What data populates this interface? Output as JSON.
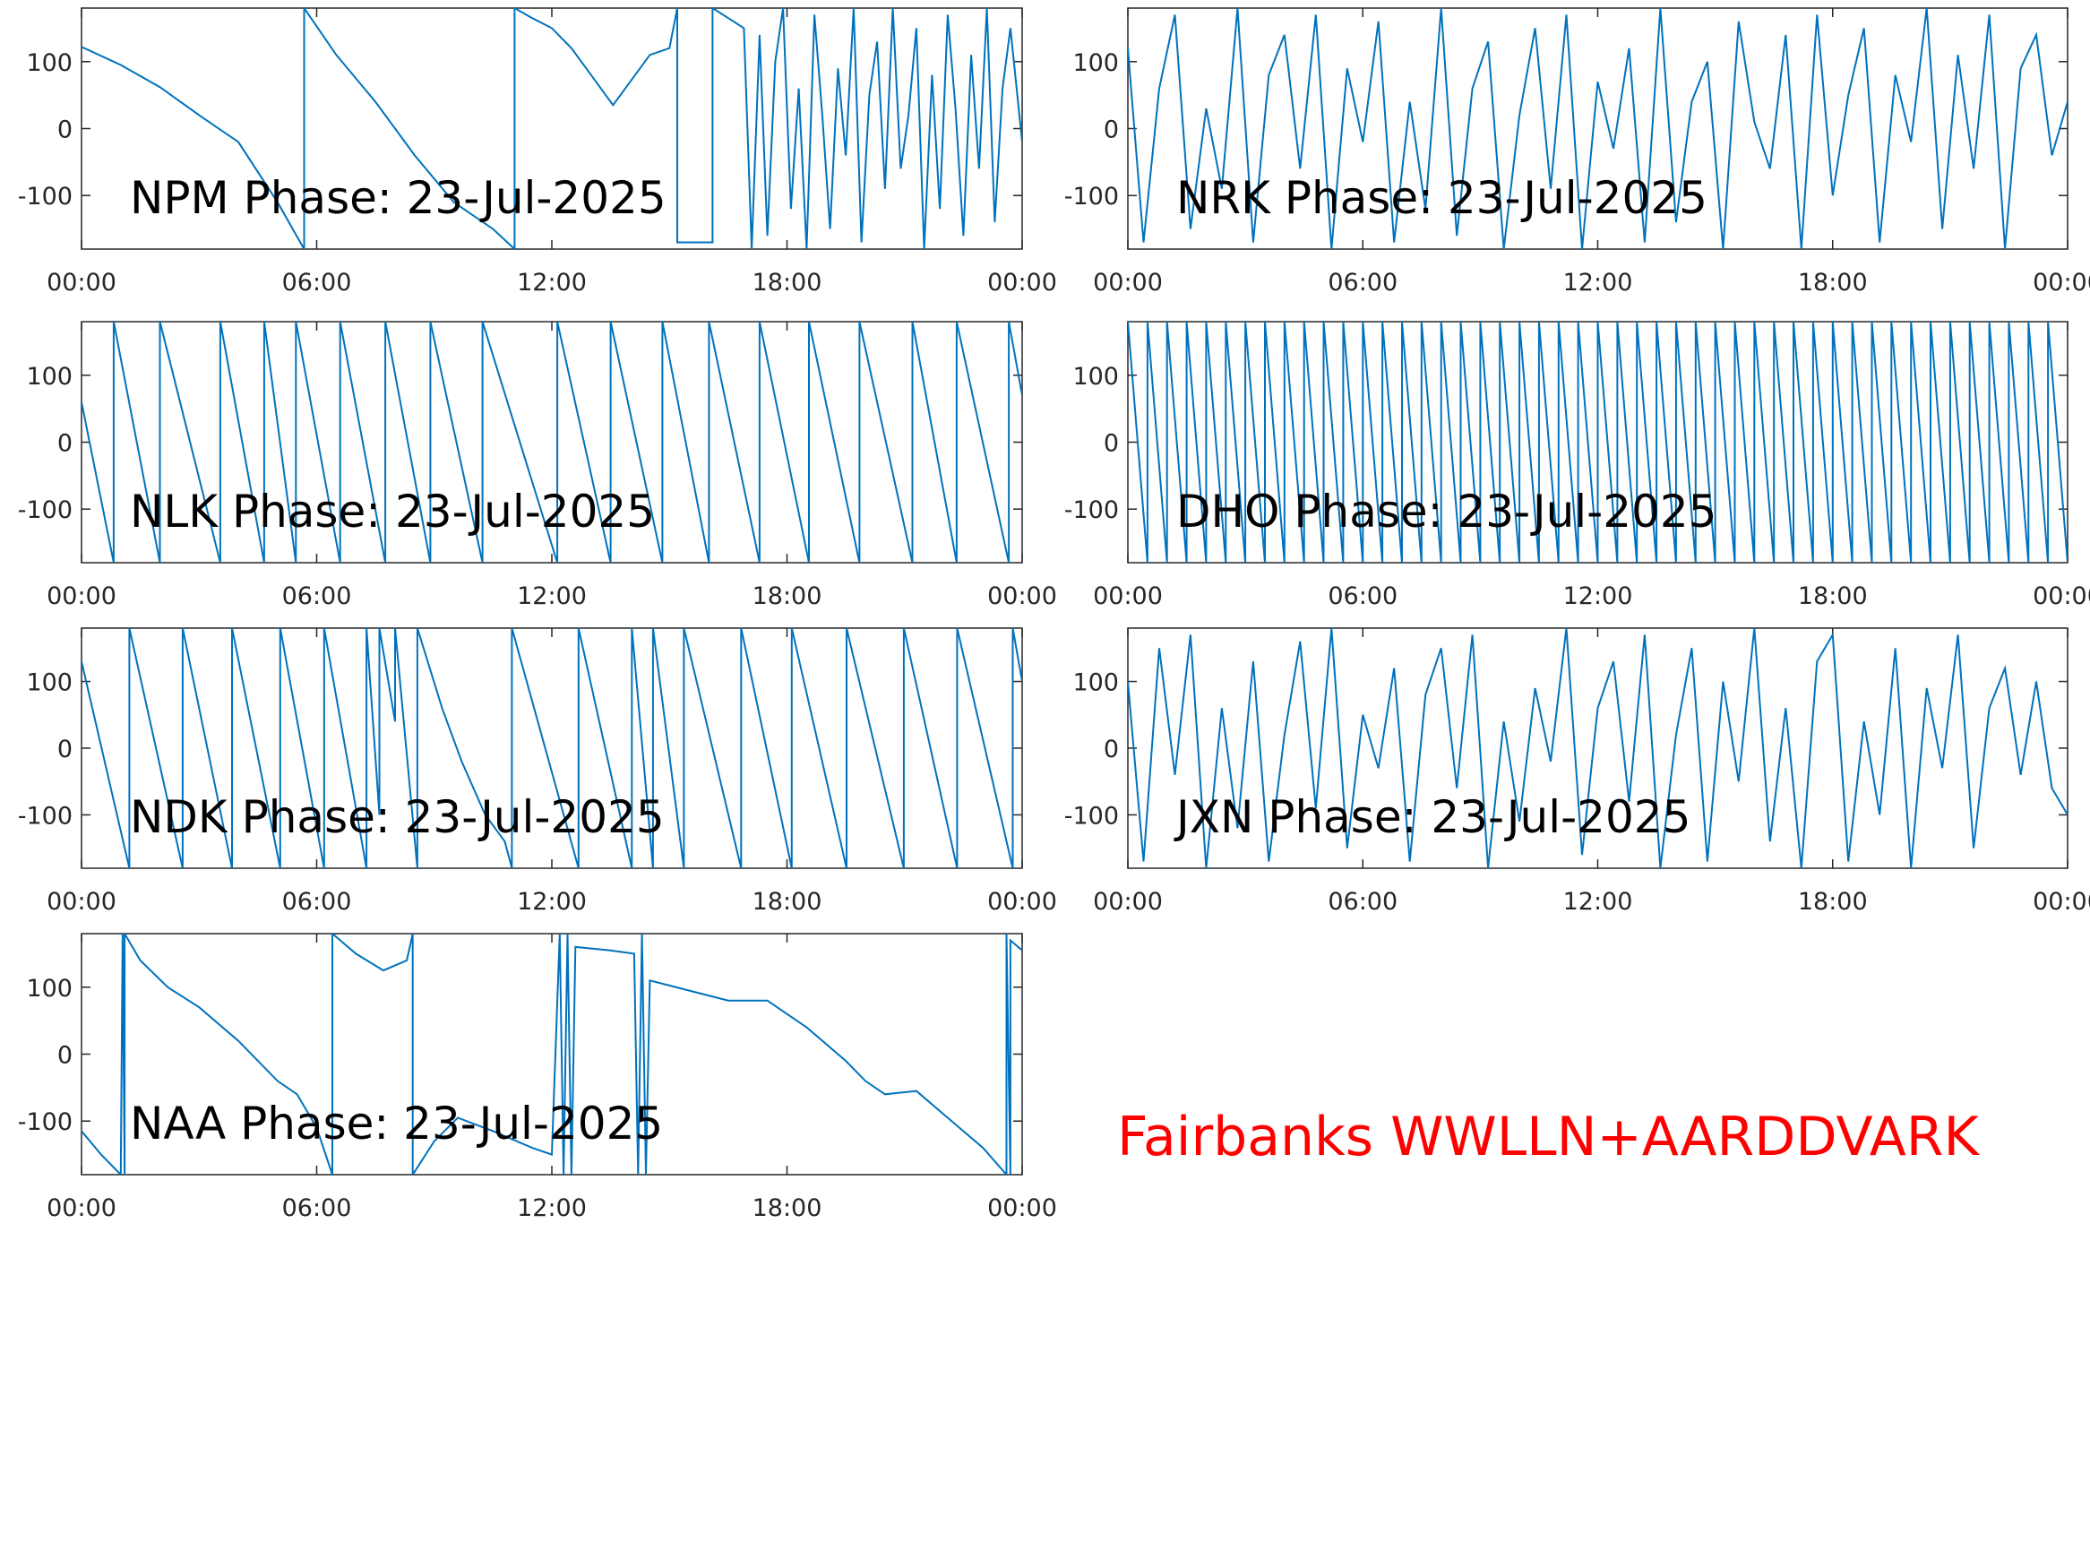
{
  "annotation": "Fairbanks WWLLN+AARDDVARK",
  "chart_data": [
    {
      "type": "line",
      "title": "NPM Phase: 23-Jul-2025",
      "xlim": [
        0,
        24
      ],
      "ylim": [
        -180,
        180
      ],
      "yticks": [
        -100,
        0,
        100
      ],
      "xticks": [
        {
          "value": 0,
          "label": "00:00"
        },
        {
          "value": 6,
          "label": "06:00"
        },
        {
          "value": 12,
          "label": "12:00"
        },
        {
          "value": 18,
          "label": "18:00"
        },
        {
          "value": 24,
          "label": "00:00"
        }
      ],
      "x": [
        0,
        1,
        2,
        3,
        4,
        5,
        5.68,
        5.68,
        6.5,
        7.5,
        8.5,
        9.5,
        10.5,
        11.05,
        11.05,
        11.5,
        12,
        12.5,
        13,
        13.56,
        14,
        14.5,
        15,
        15.2,
        15.2,
        15.3,
        16.1,
        16.1,
        16.5,
        16.9,
        17.1,
        17.3,
        17.5,
        17.7,
        17.9,
        18.1,
        18.3,
        18.5,
        18.7,
        18.9,
        19.1,
        19.3,
        19.5,
        19.7,
        19.9,
        20.1,
        20.3,
        20.5,
        20.7,
        20.9,
        21.1,
        21.3,
        21.5,
        21.7,
        21.9,
        22.1,
        22.3,
        22.5,
        22.7,
        22.9,
        23.1,
        23.3,
        23.5,
        23.7,
        24
      ],
      "series": [
        {
          "color": "#0072bd",
          "values": [
            122,
            95,
            62,
            20,
            -20,
            -110,
            -180,
            180,
            110,
            40,
            -40,
            -110,
            -150,
            -180,
            180,
            165,
            150,
            120,
            80,
            35,
            70,
            110,
            120,
            180,
            -170,
            -170,
            -170,
            180,
            165,
            150,
            -180,
            140,
            -160,
            100,
            180,
            -120,
            60,
            -180,
            170,
            20,
            -150,
            90,
            -40,
            180,
            -170,
            50,
            130,
            -90,
            180,
            -60,
            20,
            150,
            -180,
            80,
            -120,
            170,
            30,
            -160,
            110,
            -60,
            180,
            -140,
            60,
            150,
            -20
          ]
        }
      ]
    },
    {
      "type": "line",
      "title": "NRK Phase: 23-Jul-2025",
      "xlim": [
        0,
        24
      ],
      "ylim": [
        -180,
        180
      ],
      "yticks": [
        -100,
        0,
        100
      ],
      "xticks": [
        {
          "value": 0,
          "label": "00:00"
        },
        {
          "value": 6,
          "label": "06:00"
        },
        {
          "value": 12,
          "label": "12:00"
        },
        {
          "value": 18,
          "label": "18:00"
        },
        {
          "value": 24,
          "label": "00:00"
        }
      ],
      "x": [
        0,
        0.4,
        0.8,
        1.2,
        1.6,
        2,
        2.4,
        2.8,
        3.2,
        3.6,
        4,
        4.4,
        4.8,
        5.2,
        5.6,
        6,
        6.4,
        6.8,
        7.2,
        7.6,
        8,
        8.4,
        8.8,
        9.2,
        9.6,
        10,
        10.4,
        10.8,
        11.2,
        11.6,
        12,
        12.4,
        12.8,
        13.2,
        13.6,
        14,
        14.4,
        14.8,
        15.2,
        15.6,
        16,
        16.4,
        16.8,
        17.2,
        17.6,
        18,
        18.4,
        18.8,
        19.2,
        19.6,
        20,
        20.4,
        20.8,
        21.2,
        21.6,
        22,
        22.4,
        22.8,
        23.2,
        23.6,
        24
      ],
      "series": [
        {
          "color": "#0072bd",
          "values": [
            120,
            -170,
            60,
            170,
            -150,
            30,
            -90,
            180,
            -170,
            80,
            140,
            -60,
            170,
            -180,
            90,
            -20,
            160,
            -170,
            40,
            -120,
            180,
            -160,
            60,
            130,
            -180,
            20,
            150,
            -90,
            170,
            -180,
            70,
            -30,
            120,
            -170,
            180,
            -140,
            40,
            100,
            -180,
            160,
            10,
            -60,
            140,
            -180,
            170,
            -100,
            50,
            150,
            -170,
            80,
            -20,
            180,
            -150,
            110,
            -60,
            170,
            -180,
            90,
            140,
            -40,
            40
          ]
        }
      ]
    },
    {
      "type": "line",
      "title": "NLK Phase: 23-Jul-2025",
      "xlim": [
        0,
        24
      ],
      "ylim": [
        -180,
        180
      ],
      "yticks": [
        -100,
        0,
        100
      ],
      "xticks": [
        {
          "value": 0,
          "label": "00:00"
        },
        {
          "value": 6,
          "label": "06:00"
        },
        {
          "value": 12,
          "label": "12:00"
        },
        {
          "value": 18,
          "label": "18:00"
        },
        {
          "value": 24,
          "label": "00:00"
        }
      ],
      "x": [
        0,
        0.82,
        0.82,
        2,
        2,
        3.54,
        3.54,
        4.66,
        4.66,
        5.47,
        5.47,
        6.6,
        6.6,
        7.75,
        7.75,
        8.9,
        8.9,
        10.23,
        10.23,
        12.14,
        12.14,
        13.5,
        13.5,
        14.82,
        14.82,
        16.01,
        16.01,
        17.3,
        17.3,
        18.56,
        18.56,
        19.85,
        19.85,
        21.2,
        21.2,
        22.33,
        22.33,
        23.66,
        23.66,
        24
      ],
      "series": [
        {
          "color": "#0072bd",
          "values": [
            60,
            -180,
            180,
            -180,
            180,
            -180,
            180,
            -180,
            180,
            -180,
            180,
            -180,
            180,
            -180,
            180,
            -180,
            180,
            -180,
            180,
            -180,
            180,
            -180,
            180,
            -180,
            180,
            -180,
            180,
            -180,
            180,
            -180,
            180,
            -180,
            180,
            -180,
            180,
            -180,
            180,
            -180,
            180,
            70
          ]
        }
      ]
    },
    {
      "type": "line",
      "title": "DHO Phase: 23-Jul-2025",
      "xlim": [
        0,
        24
      ],
      "ylim": [
        -180,
        180
      ],
      "yticks": [
        -100,
        0,
        100
      ],
      "xticks": [
        {
          "value": 0,
          "label": "00:00"
        },
        {
          "value": 6,
          "label": "06:00"
        },
        {
          "value": 12,
          "label": "12:00"
        },
        {
          "value": 18,
          "label": "18:00"
        },
        {
          "value": 24,
          "label": "00:00"
        }
      ],
      "x": [
        0,
        0.5,
        0.5,
        1,
        1,
        1.5,
        1.5,
        2,
        2,
        2.5,
        2.5,
        3,
        3,
        3.5,
        3.5,
        4,
        4,
        4.5,
        4.5,
        5,
        5,
        5.5,
        5.5,
        6,
        6,
        6.5,
        6.5,
        7,
        7,
        7.5,
        7.5,
        8,
        8,
        8.5,
        8.5,
        9,
        9,
        9.5,
        9.5,
        10,
        10,
        10.5,
        10.5,
        11,
        11,
        11.5,
        11.5,
        12,
        12,
        12.5,
        12.5,
        13,
        13,
        13.5,
        13.5,
        14,
        14,
        14.5,
        14.5,
        15,
        15,
        15.5,
        15.5,
        16,
        16,
        16.5,
        16.5,
        17,
        17,
        17.5,
        17.5,
        18,
        18,
        18.5,
        18.5,
        19,
        19,
        19.5,
        19.5,
        20,
        20,
        20.5,
        20.5,
        21,
        21,
        21.5,
        21.5,
        22,
        22,
        22.5,
        22.5,
        23,
        23,
        23.5,
        23.5,
        24
      ],
      "series": [
        {
          "color": "#0072bd",
          "values": [
            180,
            -180,
            180,
            -180,
            180,
            -180,
            180,
            -180,
            180,
            -180,
            180,
            -180,
            180,
            -180,
            180,
            -180,
            180,
            -180,
            180,
            -180,
            180,
            -180,
            180,
            -180,
            180,
            -180,
            180,
            -180,
            180,
            -180,
            180,
            -180,
            180,
            -180,
            180,
            -180,
            180,
            -180,
            180,
            -180,
            180,
            -180,
            180,
            -180,
            180,
            -180,
            180,
            -180,
            180,
            -180,
            180,
            -180,
            180,
            -180,
            180,
            -180,
            180,
            -180,
            180,
            -180,
            180,
            -180,
            180,
            -180,
            180,
            -180,
            180,
            -180,
            180,
            -180,
            180,
            -180,
            180,
            -180,
            180,
            -180,
            180,
            -180,
            180,
            -180,
            180,
            -180,
            180,
            -180,
            180,
            -180,
            180,
            -180,
            180,
            -180,
            180,
            -180,
            180,
            -180,
            180,
            -180
          ]
        }
      ]
    },
    {
      "type": "line",
      "title": "NDK Phase: 23-Jul-2025",
      "xlim": [
        0,
        24
      ],
      "ylim": [
        -180,
        180
      ],
      "yticks": [
        -100,
        0,
        100
      ],
      "xticks": [
        {
          "value": 0,
          "label": "00:00"
        },
        {
          "value": 6,
          "label": "06:00"
        },
        {
          "value": 12,
          "label": "12:00"
        },
        {
          "value": 18,
          "label": "18:00"
        },
        {
          "value": 24,
          "label": "00:00"
        }
      ],
      "x": [
        0,
        1.22,
        1.22,
        2.58,
        2.58,
        3.84,
        3.84,
        5.07,
        5.07,
        6.19,
        6.19,
        7.27,
        7.27,
        7.6,
        7.6,
        8,
        8,
        8.57,
        8.57,
        9.2,
        9.7,
        10.3,
        10.8,
        10.98,
        10.98,
        12.68,
        12.68,
        14.04,
        14.04,
        14.58,
        14.58,
        15.37,
        15.37,
        16.83,
        16.83,
        18.12,
        18.12,
        19.52,
        19.52,
        20.98,
        20.98,
        22.34,
        22.34,
        23.76,
        23.76,
        24
      ],
      "series": [
        {
          "color": "#0072bd",
          "values": [
            130,
            -180,
            180,
            -180,
            180,
            -180,
            180,
            -180,
            180,
            -180,
            180,
            -180,
            180,
            -100,
            180,
            40,
            180,
            -180,
            180,
            60,
            -20,
            -100,
            -140,
            -180,
            180,
            -180,
            180,
            -180,
            180,
            -180,
            180,
            -180,
            180,
            -180,
            180,
            -180,
            180,
            -180,
            180,
            -180,
            180,
            -180,
            180,
            -180,
            180,
            100
          ]
        }
      ]
    },
    {
      "type": "line",
      "title": "JXN Phase: 23-Jul-2025",
      "xlim": [
        0,
        24
      ],
      "ylim": [
        -180,
        180
      ],
      "yticks": [
        -100,
        0,
        100
      ],
      "xticks": [
        {
          "value": 0,
          "label": "00:00"
        },
        {
          "value": 6,
          "label": "06:00"
        },
        {
          "value": 12,
          "label": "12:00"
        },
        {
          "value": 18,
          "label": "18:00"
        },
        {
          "value": 24,
          "label": "00:00"
        }
      ],
      "x": [
        0,
        0.4,
        0.8,
        1.2,
        1.6,
        2,
        2.4,
        2.8,
        3.2,
        3.6,
        4,
        4.4,
        4.8,
        5.2,
        5.6,
        6,
        6.4,
        6.8,
        7.2,
        7.6,
        8,
        8.4,
        8.8,
        9.2,
        9.6,
        10,
        10.4,
        10.8,
        11.2,
        11.6,
        12,
        12.4,
        12.8,
        13.2,
        13.6,
        14,
        14.4,
        14.8,
        15.2,
        15.6,
        16,
        16.4,
        16.8,
        17.2,
        17.6,
        18,
        18.4,
        18.8,
        19.2,
        19.6,
        20,
        20.4,
        20.8,
        21.2,
        21.6,
        22,
        22.4,
        22.8,
        23.2,
        23.6,
        24
      ],
      "series": [
        {
          "color": "#0072bd",
          "values": [
            100,
            -170,
            150,
            -40,
            170,
            -180,
            60,
            -120,
            130,
            -170,
            20,
            160,
            -90,
            180,
            -150,
            50,
            -30,
            120,
            -170,
            80,
            150,
            -60,
            170,
            -180,
            40,
            -110,
            90,
            -20,
            180,
            -160,
            60,
            130,
            -80,
            170,
            -180,
            20,
            150,
            -170,
            100,
            -50,
            180,
            -140,
            60,
            -180,
            130,
            170,
            -170,
            40,
            -100,
            150,
            -180,
            90,
            -30,
            170,
            -150,
            60,
            120,
            -40,
            100,
            -60,
            -100
          ]
        }
      ]
    },
    {
      "type": "line",
      "title": "NAA Phase: 23-Jul-2025",
      "xlim": [
        0,
        24
      ],
      "ylim": [
        -180,
        180
      ],
      "yticks": [
        -100,
        0,
        100
      ],
      "xticks": [
        {
          "value": 0,
          "label": "00:00"
        },
        {
          "value": 6,
          "label": "06:00"
        },
        {
          "value": 12,
          "label": "12:00"
        },
        {
          "value": 18,
          "label": "18:00"
        },
        {
          "value": 24,
          "label": "00:00"
        }
      ],
      "x": [
        0,
        0.5,
        1,
        1.05,
        1.1,
        1.1,
        1.5,
        2.2,
        3,
        4,
        5,
        5.5,
        6,
        6.4,
        6.4,
        7,
        7.7,
        8.3,
        8.45,
        8.45,
        9,
        9.6,
        10.5,
        11.5,
        12,
        12.2,
        12.3,
        12.4,
        12.5,
        12.6,
        13.5,
        14.1,
        14.2,
        14.3,
        14.4,
        14.5,
        15.5,
        16.5,
        17.5,
        18.5,
        19.5,
        20,
        20.5,
        21.3,
        22,
        23,
        23.6,
        23.6,
        23.7,
        23.7,
        24
      ],
      "series": [
        {
          "color": "#0072bd",
          "values": [
            -115,
            -150,
            -180,
            180,
            -180,
            180,
            140,
            100,
            70,
            20,
            -40,
            -60,
            -110,
            -180,
            180,
            150,
            125,
            140,
            180,
            -180,
            -130,
            -95,
            -115,
            -140,
            -150,
            180,
            -180,
            180,
            -180,
            160,
            155,
            150,
            -180,
            180,
            -180,
            110,
            95,
            80,
            80,
            40,
            -10,
            -40,
            -60,
            -55,
            -90,
            -140,
            -180,
            180,
            -180,
            170,
            155
          ]
        }
      ]
    }
  ]
}
